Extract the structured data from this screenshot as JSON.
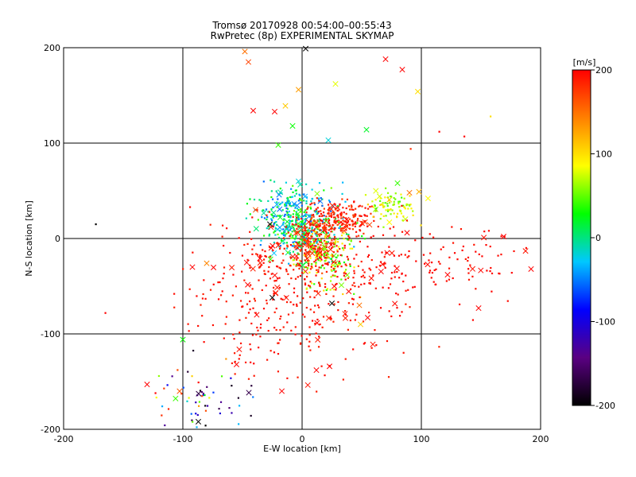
{
  "title_line1": "Tromsø 20170928 00:54:00–00:55:43",
  "title_line2": "RwPretec (8p) EXPERIMENTAL SKYMAP",
  "colorbar": {
    "unit_label": "[m/s]",
    "range": [
      -200,
      200
    ],
    "ticks": [
      "200",
      "100",
      "0",
      "-100",
      "-200"
    ],
    "colors": [
      "#000000",
      "#5a0082",
      "#0000ff",
      "#00c8ff",
      "#00ff00",
      "#ffff00",
      "#ff8000",
      "#ff0000"
    ]
  },
  "chart_data": {
    "type": "scatter",
    "title": "Tromsø 20170928 00:54:00–00:55:43",
    "subtitle": "RwPretec (8p) EXPERIMENTAL SKYMAP",
    "xlabel": "E-W location [km]",
    "ylabel": "N-S location [km]",
    "xlim": [
      -200,
      200
    ],
    "ylim": [
      -200,
      200
    ],
    "xticks": [
      "-200",
      "-100",
      "0",
      "100",
      "200"
    ],
    "yticks": [
      "-200",
      "-100",
      "0",
      "100",
      "200"
    ],
    "grid": true,
    "color_variable": "[m/s]",
    "markers": {
      "small": "dot",
      "large": "x"
    },
    "points": [
      {
        "x": -48,
        "y": 196,
        "v": 150,
        "m": "x"
      },
      {
        "x": -45,
        "y": 185,
        "v": 170,
        "m": "x"
      },
      {
        "x": 3,
        "y": 199,
        "v": -200,
        "m": "x"
      },
      {
        "x": 70,
        "y": 188,
        "v": 200,
        "m": "x"
      },
      {
        "x": 84,
        "y": 177,
        "v": 200,
        "m": "x"
      },
      {
        "x": -3,
        "y": 156,
        "v": 130,
        "m": "x"
      },
      {
        "x": 28,
        "y": 162,
        "v": 80,
        "m": "x"
      },
      {
        "x": 97,
        "y": 154,
        "v": 100,
        "m": "x"
      },
      {
        "x": -14,
        "y": 139,
        "v": 110,
        "m": "x"
      },
      {
        "x": -41,
        "y": 134,
        "v": 200,
        "m": "x"
      },
      {
        "x": -23,
        "y": 133,
        "v": 200,
        "m": "x"
      },
      {
        "x": -8,
        "y": 118,
        "v": 30,
        "m": "x"
      },
      {
        "x": 54,
        "y": 114,
        "v": 20,
        "m": "x"
      },
      {
        "x": 22,
        "y": 103,
        "v": -20,
        "m": "x"
      },
      {
        "x": -20,
        "y": 98,
        "v": 40,
        "m": "x"
      },
      {
        "x": 158,
        "y": 128,
        "v": 100,
        "m": "dot"
      },
      {
        "x": 115,
        "y": 112,
        "v": 200,
        "m": "dot"
      },
      {
        "x": 136,
        "y": 107,
        "v": 200,
        "m": "dot"
      },
      {
        "x": 91,
        "y": 94,
        "v": 180,
        "m": "dot"
      },
      {
        "x": -173,
        "y": 15,
        "v": -200,
        "m": "dot"
      },
      {
        "x": -165,
        "y": -78,
        "v": 200,
        "m": "dot"
      },
      {
        "x": -92,
        "y": -30,
        "v": 200,
        "m": "x"
      },
      {
        "x": -80,
        "y": -26,
        "v": 140,
        "m": "x"
      },
      {
        "x": -100,
        "y": -106,
        "v": 30,
        "m": "x"
      },
      {
        "x": -130,
        "y": -153,
        "v": 200,
        "m": "x"
      },
      {
        "x": -123,
        "y": -162,
        "v": 200,
        "m": "dot"
      },
      {
        "x": -95,
        "y": -167,
        "v": 80,
        "m": "dot"
      },
      {
        "x": -87,
        "y": -192,
        "v": -200,
        "m": "x"
      },
      {
        "x": -81,
        "y": -196,
        "v": -200,
        "m": "dot"
      },
      {
        "x": -55,
        "y": -132,
        "v": 200,
        "m": "x"
      },
      {
        "x": -17,
        "y": -160,
        "v": 200,
        "m": "x"
      },
      {
        "x": 12,
        "y": -138,
        "v": 200,
        "m": "x"
      },
      {
        "x": 23,
        "y": -134,
        "v": 200,
        "m": "x"
      },
      {
        "x": 48,
        "y": -70,
        "v": 150,
        "m": "x"
      },
      {
        "x": 49,
        "y": -90,
        "v": 110,
        "m": "x"
      },
      {
        "x": 55,
        "y": -83,
        "v": 200,
        "m": "x"
      },
      {
        "x": -25,
        "y": -62,
        "v": -200,
        "m": "x"
      },
      {
        "x": 25,
        "y": -68,
        "v": -200,
        "m": "x"
      },
      {
        "x": -27,
        "y": 15,
        "v": -200,
        "m": "x"
      },
      {
        "x": -39,
        "y": 30,
        "v": 160,
        "m": "x"
      },
      {
        "x": 88,
        "y": 6,
        "v": 200,
        "m": "x"
      },
      {
        "x": 122,
        "y": -38,
        "v": 200,
        "m": "x"
      },
      {
        "x": 148,
        "y": -73,
        "v": 200,
        "m": "x"
      },
      {
        "x": 169,
        "y": 2,
        "v": 200,
        "m": "x"
      },
      {
        "x": 192,
        "y": -32,
        "v": 200,
        "m": "x"
      },
      {
        "x": -3,
        "y": 60,
        "v": -20,
        "m": "x"
      },
      {
        "x": 80,
        "y": 58,
        "v": 40,
        "m": "x"
      },
      {
        "x": 90,
        "y": 48,
        "v": 150,
        "m": "x"
      },
      {
        "x": 98,
        "y": 49,
        "v": 120,
        "m": "x"
      }
    ],
    "clusters": [
      {
        "cx": 0,
        "cy": 15,
        "sx": 16,
        "sy": 20,
        "n": 320,
        "v": [
          -60,
          60
        ]
      },
      {
        "cx": 32,
        "cy": 22,
        "sx": 14,
        "sy": 9,
        "n": 200,
        "v": [
          170,
          200
        ]
      },
      {
        "cx": 12,
        "cy": -5,
        "sx": 12,
        "sy": 14,
        "n": 200,
        "v": [
          160,
          200
        ]
      },
      {
        "cx": 75,
        "cy": 35,
        "sx": 10,
        "sy": 8,
        "n": 90,
        "v": [
          40,
          110
        ]
      },
      {
        "cx": 20,
        "cy": -18,
        "sx": 14,
        "sy": 20,
        "n": 140,
        "v": [
          20,
          110
        ]
      },
      {
        "cx": -15,
        "cy": 30,
        "sx": 14,
        "sy": 14,
        "n": 110,
        "v": [
          -60,
          40
        ]
      },
      {
        "cx": -5,
        "cy": -55,
        "sx": 42,
        "sy": 40,
        "n": 420,
        "v": [
          185,
          200
        ]
      },
      {
        "cx": 100,
        "cy": -25,
        "sx": 42,
        "sy": 22,
        "n": 140,
        "v": [
          190,
          200
        ]
      },
      {
        "cx": -85,
        "cy": -165,
        "sx": 22,
        "sy": 22,
        "n": 60,
        "v": [
          -200,
          200
        ]
      }
    ]
  }
}
